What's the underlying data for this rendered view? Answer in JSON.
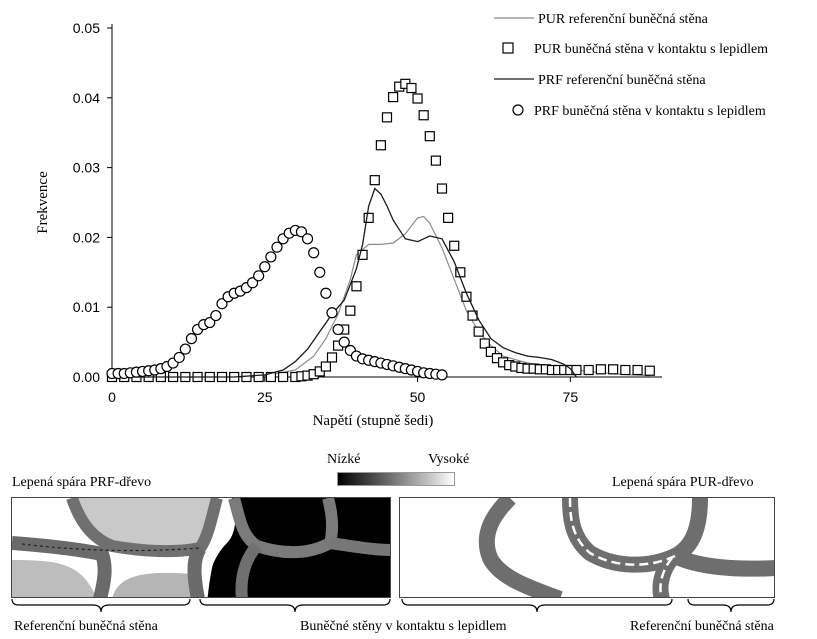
{
  "chart_data": {
    "type": "line",
    "xlabel": "Napětí (stupně šedi)",
    "ylabel": "Frekvence",
    "xlim": [
      0,
      90
    ],
    "ylim": [
      0,
      0.05
    ],
    "xticks": [
      0,
      25,
      50,
      75
    ],
    "xtick_labels": [
      "0",
      "25",
      "50",
      "75"
    ],
    "yticks": [
      0,
      0.01,
      0.02,
      0.03,
      0.04,
      0.05
    ],
    "ytick_labels": [
      "0.00",
      "0.01",
      "0.02",
      "0.03",
      "0.04",
      "0.05"
    ],
    "legend_position": "top-right",
    "series": [
      {
        "name": "PUR referenční buněčná stěna",
        "style": "line",
        "color": "#8c8c8c",
        "x": [
          0,
          20,
          25,
          30,
          33,
          35,
          37,
          39,
          40,
          42,
          44,
          46,
          48,
          50,
          51,
          52,
          54,
          56,
          58,
          60,
          62,
          64,
          66,
          68,
          70,
          72,
          74,
          76,
          80,
          85,
          88
        ],
        "y": [
          0,
          0,
          0.0002,
          0.001,
          0.003,
          0.0055,
          0.009,
          0.014,
          0.0175,
          0.019,
          0.019,
          0.0192,
          0.0205,
          0.0228,
          0.023,
          0.022,
          0.0185,
          0.014,
          0.0095,
          0.0065,
          0.0045,
          0.003,
          0.0025,
          0.002,
          0.0018,
          0.0015,
          0.0012,
          0.001,
          0.0006,
          0.0003,
          0.0002
        ]
      },
      {
        "name": "PUR buněčná stěna v kontaktu s lepidlem",
        "style": "square",
        "color": "#000000",
        "x": [
          0,
          2,
          4,
          6,
          8,
          10,
          12,
          14,
          16,
          18,
          20,
          22,
          24,
          26,
          28,
          30,
          31,
          32,
          33,
          34,
          35,
          36,
          37,
          38,
          39,
          40,
          41,
          42,
          43,
          44,
          45,
          46,
          47,
          48,
          49,
          50,
          51,
          52,
          53,
          54,
          55,
          56,
          57,
          58,
          59,
          60,
          61,
          62,
          63,
          64,
          65,
          66,
          67,
          68,
          69,
          70,
          71,
          72,
          73,
          74,
          75,
          76,
          78,
          80,
          82,
          84,
          86,
          88
        ],
        "y": [
          0,
          0,
          0,
          0,
          0,
          0,
          0,
          0,
          0,
          0,
          0,
          0,
          0,
          0,
          0,
          0,
          0.0001,
          0.0002,
          0.0004,
          0.0008,
          0.0015,
          0.0028,
          0.0045,
          0.0068,
          0.0095,
          0.013,
          0.0175,
          0.0228,
          0.0282,
          0.0332,
          0.0372,
          0.0401,
          0.0416,
          0.042,
          0.0414,
          0.0399,
          0.0375,
          0.0345,
          0.031,
          0.027,
          0.0228,
          0.0188,
          0.015,
          0.0115,
          0.0088,
          0.0065,
          0.0048,
          0.0036,
          0.0027,
          0.0021,
          0.0017,
          0.0015,
          0.0013,
          0.0012,
          0.0012,
          0.0011,
          0.0011,
          0.001,
          0.001,
          0.001,
          0.001,
          0.001,
          0.001,
          0.0011,
          0.0011,
          0.001,
          0.001,
          0.0009
        ]
      },
      {
        "name": "PRF referenční buněčná stěna",
        "style": "line",
        "color": "#1a1a1a",
        "x": [
          0,
          20,
          25,
          28,
          30,
          32,
          34,
          36,
          38,
          40,
          41,
          42,
          43,
          44,
          45,
          46,
          48,
          50,
          52,
          54,
          56,
          58,
          60,
          62,
          64,
          66,
          68,
          70,
          72,
          74,
          75,
          76
        ],
        "y": [
          0,
          0,
          0.0003,
          0.001,
          0.0022,
          0.004,
          0.0065,
          0.009,
          0.011,
          0.0155,
          0.019,
          0.0245,
          0.027,
          0.0262,
          0.0245,
          0.0225,
          0.0198,
          0.0194,
          0.0202,
          0.0198,
          0.0165,
          0.012,
          0.0082,
          0.0055,
          0.0042,
          0.0035,
          0.003,
          0.0028,
          0.0025,
          0.0018,
          0.0012,
          0
        ]
      },
      {
        "name": "PRF buněčná stěna v kontaktu s lepidlem",
        "style": "circle",
        "color": "#000000",
        "x": [
          0,
          1,
          2,
          3,
          4,
          5,
          6,
          7,
          8,
          9,
          10,
          11,
          12,
          13,
          14,
          15,
          16,
          17,
          18,
          19,
          20,
          21,
          22,
          23,
          24,
          25,
          26,
          27,
          28,
          29,
          30,
          31,
          32,
          33,
          34,
          35,
          36,
          37,
          38,
          39,
          40,
          41,
          42,
          43,
          44,
          45,
          46,
          47,
          48,
          49,
          50,
          51,
          52,
          53,
          54
        ],
        "y": [
          0.0005,
          0.0005,
          0.0005,
          0.0006,
          0.0007,
          0.0008,
          0.0009,
          0.001,
          0.0012,
          0.0015,
          0.002,
          0.0028,
          0.004,
          0.0055,
          0.0068,
          0.0075,
          0.0078,
          0.0088,
          0.0105,
          0.0115,
          0.012,
          0.0123,
          0.0128,
          0.0135,
          0.0145,
          0.0158,
          0.0172,
          0.0186,
          0.0198,
          0.0206,
          0.021,
          0.0208,
          0.0198,
          0.0178,
          0.015,
          0.012,
          0.0092,
          0.0068,
          0.005,
          0.0038,
          0.003,
          0.0026,
          0.0024,
          0.0022,
          0.002,
          0.0018,
          0.0016,
          0.0014,
          0.0012,
          0.001,
          0.0008,
          0.0006,
          0.0005,
          0.0004,
          0.0003
        ]
      }
    ]
  },
  "colorbar": {
    "low_label": "Nízké",
    "high_label": "Vysoké"
  },
  "panels": {
    "left_title": "Lepená spára PRF-dřevo",
    "right_title": "Lepená spára PUR-dřevo"
  },
  "captions": {
    "left_reference": "Referenční buněčná stěna",
    "center_contact": "Buněčné stěny v kontaktu s lepidlem",
    "right_reference": "Referenční buněčná stěna"
  }
}
